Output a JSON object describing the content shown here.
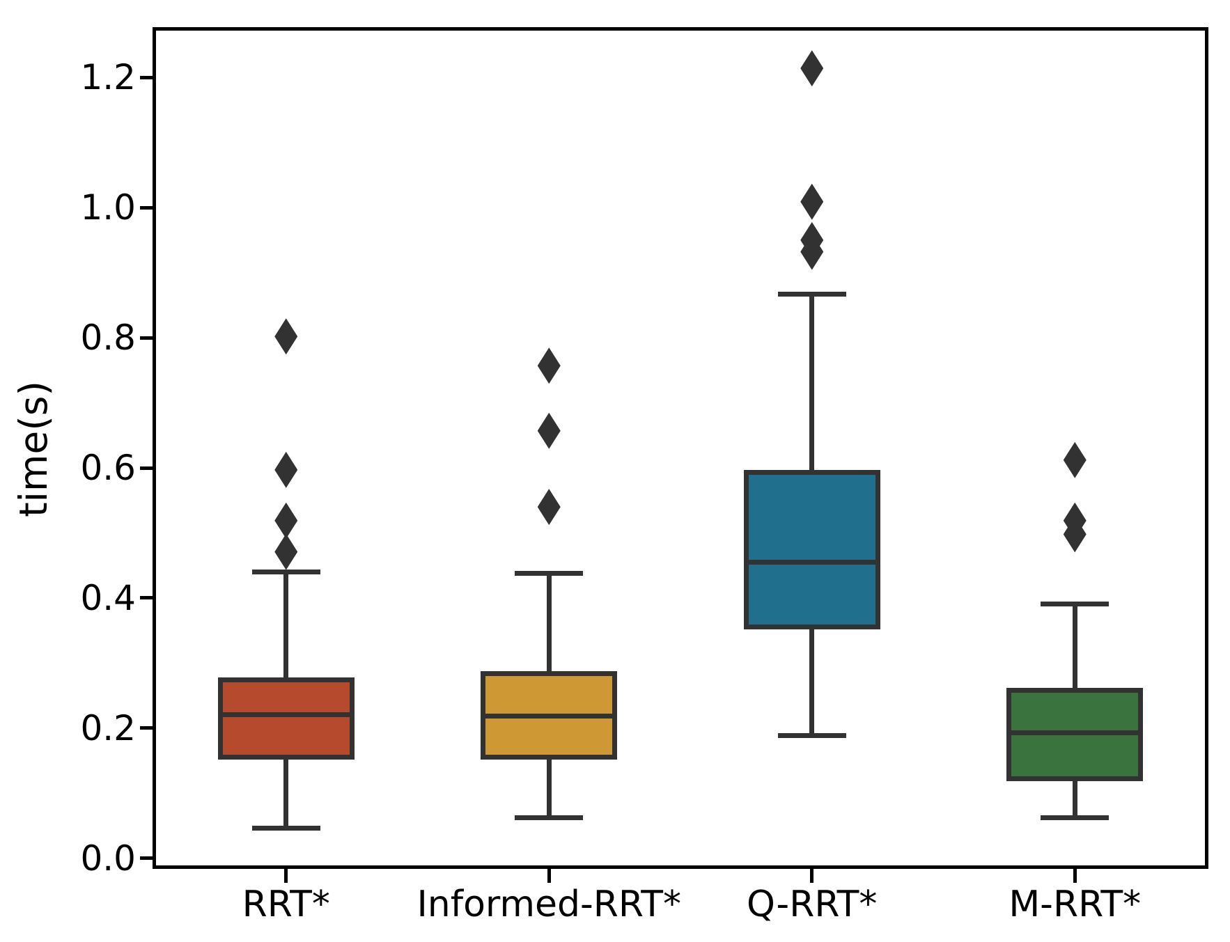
{
  "chart_data": {
    "type": "boxplot",
    "title": "",
    "xlabel": "",
    "ylabel": "time(s)",
    "categories": [
      "RRT*",
      "Informed-RRT*",
      "Q-RRT*",
      "M-RRT*"
    ],
    "ytick_values": [
      0.0,
      0.2,
      0.4,
      0.6,
      0.8,
      1.0,
      1.2
    ],
    "ytick_labels": [
      "0.0",
      "0.2",
      "0.4",
      "0.6",
      "0.8",
      "1.0",
      "1.2"
    ],
    "ylim": [
      -0.013,
      1.274
    ],
    "grid": false,
    "legend_position": "none",
    "line_color": "#323232",
    "series": [
      {
        "label": "RRT*",
        "color": "#b54a2c",
        "whisker_low": 0.046,
        "q1": 0.156,
        "median": 0.221,
        "q3": 0.274,
        "whisker_high": 0.44,
        "outliers": [
          0.471,
          0.519,
          0.597,
          0.802
        ]
      },
      {
        "label": "Informed-RRT*",
        "color": "#ce9835",
        "whisker_low": 0.062,
        "q1": 0.155,
        "median": 0.219,
        "q3": 0.284,
        "whisker_high": 0.438,
        "outliers": [
          0.54,
          0.657,
          0.757
        ]
      },
      {
        "label": "Q-RRT*",
        "color": "#20708d",
        "whisker_low": 0.189,
        "q1": 0.356,
        "median": 0.455,
        "q3": 0.593,
        "whisker_high": 0.867,
        "outliers": [
          0.932,
          0.95,
          1.009,
          1.214
        ]
      },
      {
        "label": "M-RRT*",
        "color": "#3a733e",
        "whisker_low": 0.062,
        "q1": 0.122,
        "median": 0.193,
        "q3": 0.258,
        "whisker_high": 0.391,
        "outliers": [
          0.498,
          0.519,
          0.612
        ]
      }
    ]
  }
}
